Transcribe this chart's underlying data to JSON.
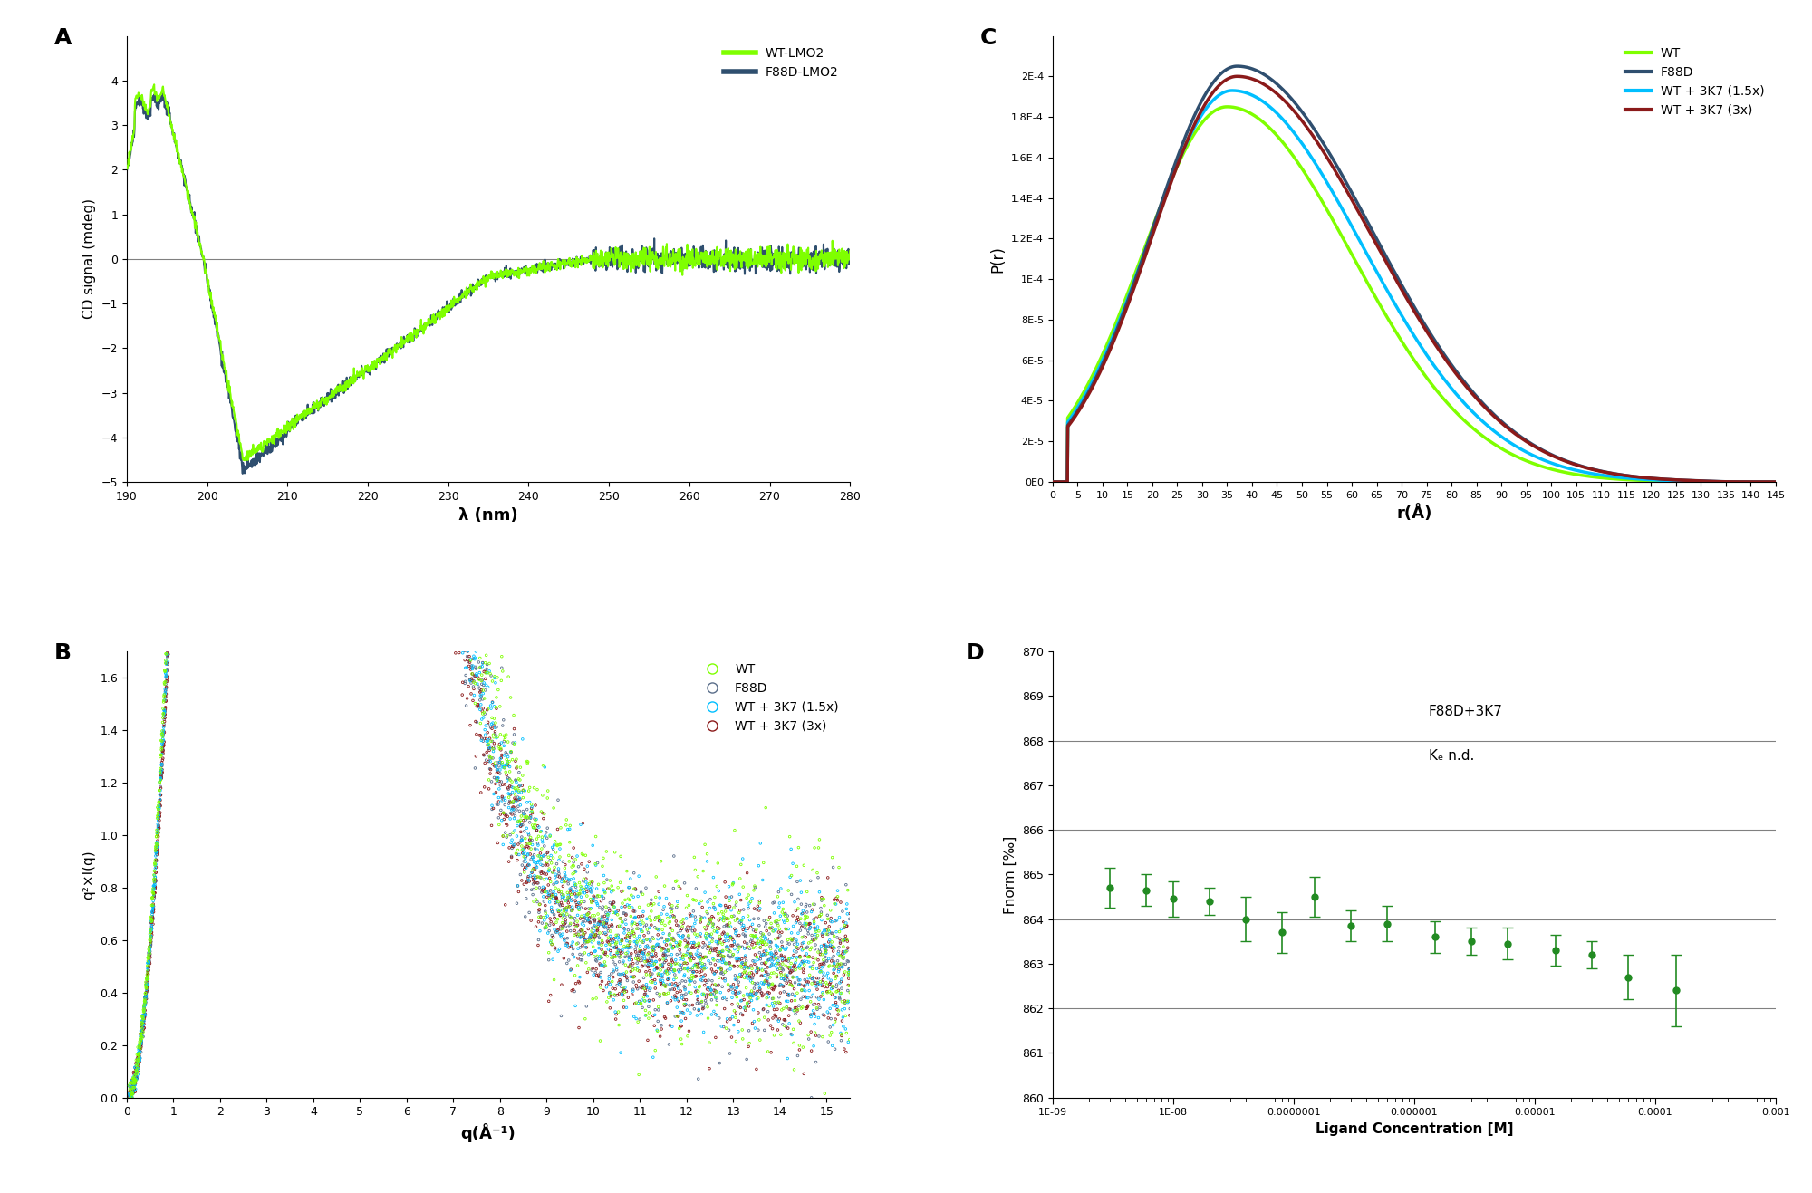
{
  "panel_A": {
    "label": "A",
    "wt_color": "#7FFF00",
    "f88d_color": "#2F4F6F",
    "legend_labels": [
      "WT-LMO2",
      "F88D-LMO2"
    ],
    "xlabel": "λ (nm)",
    "ylabel": "CD signal (mdeg)",
    "xlim": [
      190,
      280
    ],
    "ylim": [
      -5,
      5
    ],
    "yticks": [
      -5,
      -4,
      -3,
      -2,
      -1,
      0,
      1,
      2,
      3,
      4
    ],
    "xticks": [
      190,
      200,
      210,
      220,
      230,
      240,
      250,
      260,
      270,
      280
    ]
  },
  "panel_B": {
    "label": "B",
    "wt_color": "#7FFF00",
    "f88d_color": "#5A6E8A",
    "wt3k7_15_color": "#00BFFF",
    "wt3k7_3_color": "#8B1A1A",
    "legend_labels": [
      "WT",
      "F88D",
      "WT + 3K7 (1.5x)",
      "WT + 3K7 (3x)"
    ],
    "xlabel": "q(Å⁻¹)",
    "ylabel": "q²×I(q)",
    "xlim": [
      0,
      15.5
    ],
    "ylim": [
      0.0,
      1.7
    ],
    "yticks": [
      0.0,
      0.2,
      0.4,
      0.6,
      0.8,
      1.0,
      1.2,
      1.4,
      1.6
    ],
    "xticks": [
      0,
      1,
      2,
      3,
      4,
      5,
      6,
      7,
      8,
      9,
      10,
      11,
      12,
      13,
      14,
      15
    ]
  },
  "panel_C": {
    "label": "C",
    "wt_color": "#7FFF00",
    "f88d_color": "#2F4F6F",
    "wt3k7_15_color": "#00BFFF",
    "wt3k7_3_color": "#8B1A1A",
    "legend_labels": [
      "WT",
      "F88D",
      "WT + 3K7 (1.5x)",
      "WT + 3K7 (3x)"
    ],
    "xlabel": "r(Å)",
    "ylabel": "P(r)",
    "xlim": [
      0,
      145
    ],
    "ylim": [
      0,
      0.00022
    ],
    "xticks": [
      0,
      5,
      10,
      15,
      20,
      25,
      30,
      35,
      40,
      45,
      50,
      55,
      60,
      65,
      70,
      75,
      80,
      85,
      90,
      95,
      100,
      105,
      110,
      115,
      120,
      125,
      130,
      135,
      140,
      145
    ],
    "ytick_vals": [
      0,
      2e-05,
      4e-05,
      6e-05,
      8e-05,
      0.0001,
      0.00012,
      0.00014,
      0.00016,
      0.00018,
      0.0002
    ],
    "ytick_labels": [
      "0E0",
      "2E-5",
      "4E-5",
      "6E-5",
      "8E-5",
      "1E-4",
      "1.2E-4",
      "1.4E-4",
      "1.6E-4",
      "1.8E-4",
      "2E-4"
    ]
  },
  "panel_D": {
    "label": "D",
    "color": "#228B22",
    "xlabel": "Ligand Concentration [M]",
    "ylabel": "Fnorm [‰]",
    "ylim": [
      860,
      870
    ],
    "yticks": [
      860,
      861,
      862,
      863,
      864,
      865,
      866,
      867,
      868,
      869,
      870
    ],
    "hlines": [
      862.0,
      864.0,
      866.0,
      868.0
    ],
    "annotation_line1": "F88D+3K7",
    "annotation_line2": "Kₑ n.d.",
    "x_data": [
      3e-09,
      6e-09,
      1e-08,
      2e-08,
      4e-08,
      8e-08,
      1.5e-07,
      3e-07,
      6e-07,
      1.5e-06,
      3e-06,
      6e-06,
      1.5e-05,
      3e-05,
      6e-05,
      0.00015
    ],
    "y_data": [
      864.7,
      864.65,
      864.45,
      864.4,
      864.0,
      863.7,
      864.5,
      863.85,
      863.9,
      863.6,
      863.5,
      863.45,
      863.3,
      863.2,
      862.7,
      862.4
    ],
    "y_err": [
      0.45,
      0.35,
      0.4,
      0.3,
      0.5,
      0.45,
      0.45,
      0.35,
      0.4,
      0.35,
      0.3,
      0.35,
      0.35,
      0.3,
      0.5,
      0.8
    ]
  }
}
